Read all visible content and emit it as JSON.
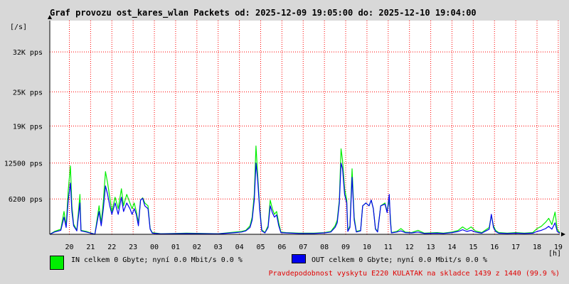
{
  "title": "Graf provozu ost_kares_wlan Packets od: 2025-12-09 19:05:00 do: 2025-12-10 19:04:00",
  "colors": {
    "in": "#00ee00",
    "out": "#0000ee",
    "grid": "#ff0000",
    "footer": "#e00000"
  },
  "legend": {
    "in": "IN celkem 0 Gbyte; nyní   0.0 Mbit/s 0.0 %",
    "out": "OUT celkem 0 Gbyte; nyní   0.0 Mbit/s 0.0 %"
  },
  "footer": "Pravdepodobnost vyskytu E220 KULATAK na skladce 1439 z 1440 (99.9 %)",
  "chart_data": {
    "type": "area",
    "yunit": "[/s]",
    "xunit": "[h]",
    "yticks": [
      {
        "value": 6200,
        "label": "6200 pps"
      },
      {
        "value": 12500,
        "label": "12500 pps"
      },
      {
        "value": 19000,
        "label": "19K pps"
      },
      {
        "value": 25000,
        "label": "25K pps"
      },
      {
        "value": 32000,
        "label": "32K pps"
      }
    ],
    "ylim": [
      0,
      37500
    ],
    "xlim": [
      19.08,
      43.07
    ],
    "xticks": [
      "20",
      "21",
      "22",
      "23",
      "00",
      "01",
      "02",
      "03",
      "04",
      "05",
      "06",
      "07",
      "08",
      "09",
      "10",
      "11",
      "12",
      "13",
      "14",
      "15",
      "16",
      "17",
      "18",
      "19"
    ],
    "xtick_hours": [
      20,
      21,
      22,
      23,
      24,
      25,
      26,
      27,
      28,
      29,
      30,
      31,
      32,
      33,
      34,
      35,
      36,
      37,
      38,
      39,
      40,
      41,
      42,
      43
    ],
    "grid": true,
    "series": [
      {
        "key": "in",
        "points": [
          [
            19.08,
            0
          ],
          [
            19.3,
            500
          ],
          [
            19.6,
            900
          ],
          [
            19.75,
            4000
          ],
          [
            19.85,
            1500
          ],
          [
            19.95,
            7800
          ],
          [
            20.05,
            12000
          ],
          [
            20.12,
            5000
          ],
          [
            20.2,
            1800
          ],
          [
            20.35,
            700
          ],
          [
            20.5,
            7000
          ],
          [
            20.55,
            700
          ],
          [
            20.8,
            500
          ],
          [
            21.2,
            0
          ],
          [
            21.4,
            5000
          ],
          [
            21.5,
            2000
          ],
          [
            21.6,
            5800
          ],
          [
            21.7,
            11000
          ],
          [
            21.8,
            9000
          ],
          [
            21.9,
            6500
          ],
          [
            22.0,
            4000
          ],
          [
            22.15,
            6500
          ],
          [
            22.3,
            4500
          ],
          [
            22.45,
            8000
          ],
          [
            22.55,
            5000
          ],
          [
            22.7,
            7000
          ],
          [
            22.85,
            5500
          ],
          [
            22.95,
            4500
          ],
          [
            23.05,
            5500
          ],
          [
            23.15,
            4000
          ],
          [
            23.25,
            2000
          ],
          [
            23.35,
            6000
          ],
          [
            23.45,
            6400
          ],
          [
            23.55,
            5500
          ],
          [
            23.7,
            5000
          ],
          [
            23.8,
            1000
          ],
          [
            23.9,
            300
          ],
          [
            24.3,
            100
          ],
          [
            25.5,
            200
          ],
          [
            27.0,
            100
          ],
          [
            27.8,
            400
          ],
          [
            28.1,
            500
          ],
          [
            28.3,
            700
          ],
          [
            28.5,
            1500
          ],
          [
            28.6,
            3000
          ],
          [
            28.7,
            7000
          ],
          [
            28.78,
            15500
          ],
          [
            28.85,
            11000
          ],
          [
            28.95,
            5000
          ],
          [
            29.05,
            800
          ],
          [
            29.2,
            300
          ],
          [
            29.35,
            1500
          ],
          [
            29.45,
            6000
          ],
          [
            29.55,
            4500
          ],
          [
            29.65,
            3500
          ],
          [
            29.75,
            4000
          ],
          [
            29.85,
            2000
          ],
          [
            29.95,
            400
          ],
          [
            30.2,
            300
          ],
          [
            30.8,
            200
          ],
          [
            31.5,
            200
          ],
          [
            32.0,
            300
          ],
          [
            32.3,
            500
          ],
          [
            32.5,
            1500
          ],
          [
            32.6,
            2500
          ],
          [
            32.7,
            6000
          ],
          [
            32.78,
            15000
          ],
          [
            32.85,
            13000
          ],
          [
            32.95,
            8000
          ],
          [
            33.05,
            6000
          ],
          [
            33.1,
            600
          ],
          [
            33.2,
            1500
          ],
          [
            33.3,
            11500
          ],
          [
            33.4,
            3000
          ],
          [
            33.5,
            500
          ],
          [
            33.7,
            700
          ],
          [
            33.8,
            5000
          ],
          [
            33.95,
            5500
          ],
          [
            34.1,
            5000
          ],
          [
            34.2,
            6000
          ],
          [
            34.3,
            4500
          ],
          [
            34.4,
            1000
          ],
          [
            34.5,
            500
          ],
          [
            34.65,
            5000
          ],
          [
            34.85,
            5500
          ],
          [
            34.95,
            4000
          ],
          [
            35.05,
            6000
          ],
          [
            35.1,
            3000
          ],
          [
            35.15,
            300
          ],
          [
            35.4,
            500
          ],
          [
            35.6,
            1000
          ],
          [
            35.8,
            400
          ],
          [
            36.1,
            300
          ],
          [
            36.4,
            700
          ],
          [
            36.7,
            200
          ],
          [
            37.3,
            300
          ],
          [
            37.6,
            200
          ],
          [
            38.0,
            400
          ],
          [
            38.3,
            700
          ],
          [
            38.5,
            1300
          ],
          [
            38.7,
            800
          ],
          [
            38.9,
            1300
          ],
          [
            39.1,
            600
          ],
          [
            39.4,
            300
          ],
          [
            39.75,
            1200
          ],
          [
            39.85,
            3300
          ],
          [
            39.95,
            1500
          ],
          [
            40.05,
            700
          ],
          [
            40.2,
            300
          ],
          [
            40.6,
            200
          ],
          [
            41.0,
            300
          ],
          [
            41.4,
            200
          ],
          [
            41.8,
            300
          ],
          [
            42.0,
            1000
          ],
          [
            42.2,
            1400
          ],
          [
            42.4,
            2100
          ],
          [
            42.55,
            2800
          ],
          [
            42.7,
            1700
          ],
          [
            42.85,
            3900
          ],
          [
            42.95,
            900
          ],
          [
            43.07,
            300
          ]
        ]
      },
      {
        "key": "out",
        "points": [
          [
            19.08,
            0
          ],
          [
            19.3,
            400
          ],
          [
            19.6,
            700
          ],
          [
            19.75,
            3000
          ],
          [
            19.85,
            1200
          ],
          [
            19.95,
            6000
          ],
          [
            20.05,
            9000
          ],
          [
            20.12,
            4000
          ],
          [
            20.2,
            1500
          ],
          [
            20.35,
            600
          ],
          [
            20.5,
            5500
          ],
          [
            20.55,
            600
          ],
          [
            20.8,
            400
          ],
          [
            21.2,
            0
          ],
          [
            21.4,
            4000
          ],
          [
            21.5,
            1500
          ],
          [
            21.6,
            4500
          ],
          [
            21.7,
            8500
          ],
          [
            21.8,
            7000
          ],
          [
            21.9,
            5000
          ],
          [
            22.0,
            3500
          ],
          [
            22.15,
            5500
          ],
          [
            22.3,
            3500
          ],
          [
            22.45,
            6500
          ],
          [
            22.55,
            4000
          ],
          [
            22.7,
            5500
          ],
          [
            22.85,
            4500
          ],
          [
            22.95,
            3500
          ],
          [
            23.05,
            4500
          ],
          [
            23.15,
            3500
          ],
          [
            23.25,
            1500
          ],
          [
            23.35,
            6000
          ],
          [
            23.45,
            6300
          ],
          [
            23.55,
            5000
          ],
          [
            23.7,
            4500
          ],
          [
            23.8,
            900
          ],
          [
            23.9,
            200
          ],
          [
            24.3,
            80
          ],
          [
            25.5,
            150
          ],
          [
            27.0,
            80
          ],
          [
            27.8,
            300
          ],
          [
            28.1,
            400
          ],
          [
            28.3,
            600
          ],
          [
            28.5,
            1200
          ],
          [
            28.6,
            2500
          ],
          [
            28.7,
            6000
          ],
          [
            28.78,
            12500
          ],
          [
            28.85,
            10000
          ],
          [
            28.95,
            4500
          ],
          [
            29.05,
            600
          ],
          [
            29.2,
            250
          ],
          [
            29.35,
            1200
          ],
          [
            29.45,
            5000
          ],
          [
            29.55,
            3800
          ],
          [
            29.65,
            3000
          ],
          [
            29.75,
            3400
          ],
          [
            29.85,
            1500
          ],
          [
            29.95,
            300
          ],
          [
            30.2,
            250
          ],
          [
            30.8,
            150
          ],
          [
            31.5,
            150
          ],
          [
            32.0,
            250
          ],
          [
            32.3,
            400
          ],
          [
            32.5,
            1200
          ],
          [
            32.6,
            2000
          ],
          [
            32.7,
            5500
          ],
          [
            32.78,
            12500
          ],
          [
            32.85,
            11500
          ],
          [
            32.95,
            7000
          ],
          [
            33.05,
            5500
          ],
          [
            33.1,
            500
          ],
          [
            33.2,
            1200
          ],
          [
            33.3,
            10000
          ],
          [
            33.4,
            2500
          ],
          [
            33.5,
            400
          ],
          [
            33.7,
            600
          ],
          [
            33.8,
            5000
          ],
          [
            33.95,
            5500
          ],
          [
            34.1,
            5000
          ],
          [
            34.2,
            6000
          ],
          [
            34.3,
            4500
          ],
          [
            34.4,
            900
          ],
          [
            34.5,
            400
          ],
          [
            34.65,
            5000
          ],
          [
            34.85,
            5300
          ],
          [
            34.95,
            3800
          ],
          [
            35.05,
            7000
          ],
          [
            35.1,
            2500
          ],
          [
            35.15,
            250
          ],
          [
            35.4,
            400
          ],
          [
            35.6,
            600
          ],
          [
            35.8,
            300
          ],
          [
            36.1,
            250
          ],
          [
            36.4,
            400
          ],
          [
            36.7,
            150
          ],
          [
            37.3,
            200
          ],
          [
            37.6,
            150
          ],
          [
            38.0,
            300
          ],
          [
            38.3,
            500
          ],
          [
            38.5,
            800
          ],
          [
            38.7,
            500
          ],
          [
            38.9,
            700
          ],
          [
            39.1,
            400
          ],
          [
            39.4,
            200
          ],
          [
            39.75,
            900
          ],
          [
            39.85,
            3500
          ],
          [
            39.95,
            1200
          ],
          [
            40.05,
            500
          ],
          [
            40.2,
            200
          ],
          [
            40.6,
            150
          ],
          [
            41.0,
            200
          ],
          [
            41.4,
            150
          ],
          [
            41.8,
            200
          ],
          [
            42.0,
            500
          ],
          [
            42.2,
            700
          ],
          [
            42.4,
            1000
          ],
          [
            42.55,
            1400
          ],
          [
            42.7,
            900
          ],
          [
            42.85,
            2000
          ],
          [
            42.95,
            500
          ],
          [
            43.07,
            200
          ]
        ]
      }
    ]
  }
}
